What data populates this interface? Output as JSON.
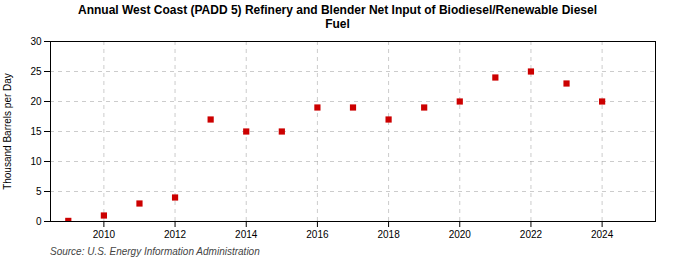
{
  "chart_data": {
    "type": "scatter",
    "title": "Annual West Coast (PADD 5) Refinery and Blender Net Input of Biodiesel/Renewable Diesel\nFuel",
    "ylabel": "Thousand Barrels per Day",
    "source": "Source: U.S. Energy Information Administration",
    "x": [
      2009,
      2010,
      2011,
      2012,
      2013,
      2014,
      2015,
      2016,
      2017,
      2018,
      2019,
      2020,
      2021,
      2022,
      2023,
      2024
    ],
    "values": [
      0.1,
      1.0,
      3.0,
      4.0,
      17.0,
      15.0,
      15.0,
      19.0,
      19.0,
      17.0,
      19.0,
      20.0,
      24.0,
      25.0,
      23.0,
      20.0
    ],
    "color": "#CC0000",
    "marker": "square",
    "xlim": [
      2008.5,
      2025.5
    ],
    "xticks": [
      2010,
      2012,
      2014,
      2016,
      2018,
      2020,
      2022,
      2024
    ],
    "ylim": [
      0,
      30
    ],
    "yticks": [
      0,
      5,
      10,
      15,
      20,
      25,
      30
    ],
    "grid": true
  }
}
